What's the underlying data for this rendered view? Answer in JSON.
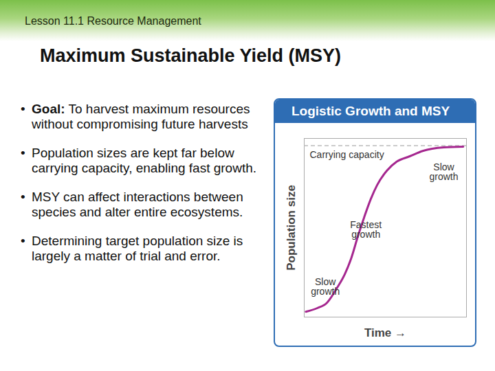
{
  "header": {
    "lesson": "Lesson 11.1 Resource Management",
    "title": "Maximum Sustainable Yield (MSY)"
  },
  "bullets": [
    {
      "lead": "Goal:",
      "text": "To harvest maximum resources without compromising future harvests"
    },
    {
      "text": "Population sizes are kept far below carrying capacity, enabling fast growth."
    },
    {
      "text": "MSY can affect interactions between species and alter entire ecosystems."
    },
    {
      "text": "Determining target population size is largely a matter of trial and error."
    }
  ],
  "chart_data": {
    "type": "line",
    "title": "Logistic Growth and MSY",
    "x_label": "Time →",
    "y_label": "Population size",
    "x": [
      1,
      8,
      14,
      20,
      25,
      29,
      33,
      37,
      41,
      45,
      51,
      57,
      65,
      73,
      86,
      98
    ],
    "values": [
      3,
      5,
      8,
      16,
      24,
      33,
      45,
      56,
      66,
      74,
      82,
      87,
      90,
      93,
      95,
      95.4
    ],
    "color": "#a5278f",
    "xlim": [
      0,
      100
    ],
    "ylim": [
      0,
      100
    ],
    "tick_labels": false,
    "grid": false,
    "reference_line": {
      "label": "Carrying capacity",
      "value": 96,
      "color": "#bbbbbb",
      "line_style": "dashed"
    },
    "annotations": [
      {
        "text": "Carrying capacity",
        "x": 4,
        "y": 90
      },
      {
        "text": "Slow growth",
        "x": 86,
        "y": 81
      },
      {
        "text": "Fastest growth",
        "x": 38,
        "y": 49
      },
      {
        "text": "Slow growth",
        "x": 13,
        "y": 17
      }
    ]
  }
}
